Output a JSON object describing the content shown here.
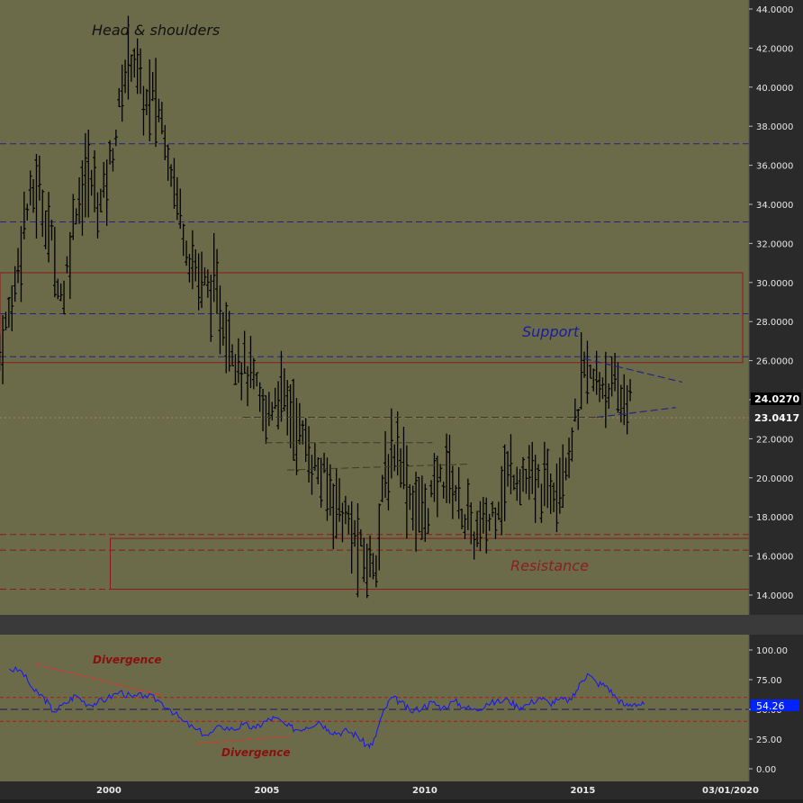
{
  "colors": {
    "panel_bg": "#6c6b49",
    "axis_bg": "#2a2a2a",
    "axis_text": "#e8e8e8",
    "bars": "#000000",
    "support_line": "#23238a",
    "zone_border": "#8c1a1a",
    "annotation_black": "#111111",
    "annotation_blue": "#1c1c9c",
    "annotation_red": "#8a2020",
    "rsi_line": "#1a1aee",
    "price_badge_bg": "#000000",
    "rsi_badge_bg": "#0022ff"
  },
  "annotations": {
    "head_shoulders": "Head & shoulders",
    "support": "Support",
    "resistance": "Resistance",
    "divergence_top": "Divergence",
    "divergence_bottom": "Divergence"
  },
  "price_axis": {
    "ticks": [
      "44.0000",
      "42.0000",
      "40.0000",
      "38.0000",
      "36.0000",
      "34.0000",
      "32.0000",
      "30.0000",
      "28.0000",
      "26.0000",
      "24.0000",
      "22.0000",
      "20.0000",
      "18.0000",
      "16.0000",
      "14.0000"
    ],
    "current_price": "24.0270",
    "reference_price": "23.0417"
  },
  "rsi_axis": {
    "ticks": [
      "100.00",
      "75.00",
      "50.00",
      "25.00",
      "0.00"
    ],
    "current_value": "54.26"
  },
  "time_axis": {
    "labels": [
      "2000",
      "2005",
      "2010",
      "2015",
      "03/01/2020"
    ]
  },
  "chart_data": [
    {
      "type": "bar",
      "title": "",
      "ylim": [
        13,
        44.3
      ],
      "x_range": [
        1996.6,
        2019.9
      ],
      "horizontal_levels": [
        37.1,
        33.1,
        28.4,
        26.2
      ],
      "support_zone": {
        "x": [
          1996.6,
          2020.0
        ],
        "y": [
          25.9,
          30.5
        ]
      },
      "resistance_zone": {
        "x": [
          2000.1,
          2020.0
        ],
        "y": [
          14.3,
          16.9
        ]
      },
      "resistance_dashed_levels": [
        17.1,
        16.3,
        14.3
      ],
      "triangle": {
        "upper": [
          [
            2015.1,
            26.1
          ],
          [
            2018.2,
            24.9
          ]
        ],
        "lower": [
          [
            2015.5,
            23.1
          ],
          [
            2018.0,
            23.6
          ]
        ]
      },
      "neckline_segments": [
        [
          [
            2004.3,
            23.1
          ],
          [
            2015.7,
            23.1
          ]
        ],
        [
          [
            2005.0,
            21.8
          ],
          [
            2010.3,
            21.8
          ]
        ],
        [
          [
            2005.7,
            20.4
          ],
          [
            2011.4,
            20.7
          ]
        ]
      ],
      "series": [
        {
          "x": [
            1996.6,
            1997.0,
            1997.4,
            1997.8,
            1998.2,
            1998.6,
            1999.0,
            1999.4,
            1999.8,
            2000.2,
            2000.6,
            2000.8,
            2001.2,
            2001.5,
            2001.8,
            2002.2,
            2002.6,
            2003.0,
            2003.4,
            2003.8,
            2004.2,
            2004.6,
            2005.0,
            2005.4,
            2005.8,
            2006.2,
            2006.6,
            2007.0,
            2007.4,
            2007.8,
            2008.2,
            2008.5,
            2008.8,
            2009.2,
            2009.6,
            2010.0,
            2010.4,
            2010.8,
            2011.2,
            2011.6,
            2012.0,
            2012.4,
            2012.8,
            2013.2,
            2013.6,
            2014.0,
            2014.4,
            2014.8,
            2015.1,
            2015.4,
            2015.8,
            2016.2,
            2016.6
          ],
          "values": [
            26.5,
            29.0,
            33.5,
            35.0,
            32.5,
            29.0,
            34.0,
            35.5,
            34.0,
            37.0,
            41.0,
            42.0,
            39.0,
            39.5,
            38.0,
            34.5,
            31.5,
            30.0,
            29.5,
            27.5,
            26.0,
            25.0,
            23.0,
            24.5,
            23.5,
            22.0,
            20.5,
            19.5,
            18.5,
            17.0,
            15.5,
            16.0,
            20.0,
            22.0,
            19.0,
            18.0,
            19.5,
            20.5,
            18.5,
            17.0,
            17.5,
            19.0,
            20.5,
            20.0,
            19.5,
            19.5,
            20.5,
            22.5,
            25.5,
            24.8,
            25.0,
            24.0,
            24.03
          ]
        }
      ]
    },
    {
      "type": "line",
      "title": "",
      "ylim": [
        0,
        100
      ],
      "upper_band": 60,
      "mid_line": 50,
      "lower_band": 40,
      "series": [
        {
          "x": [
            1996.9,
            1997.3,
            1997.7,
            1998.0,
            1998.3,
            1998.7,
            1999.0,
            1999.4,
            1999.7,
            2000.0,
            2000.4,
            2000.8,
            2001.2,
            2001.6,
            2002.0,
            2002.4,
            2002.8,
            2003.2,
            2003.6,
            2004.0,
            2004.3,
            2004.7,
            2005.0,
            2005.3,
            2005.7,
            2006.0,
            2006.3,
            2006.7,
            2007.0,
            2007.3,
            2007.6,
            2007.9,
            2008.2,
            2008.4,
            2008.7,
            2009.0,
            2009.3,
            2009.6,
            2010.0,
            2010.3,
            2010.6,
            2011.0,
            2011.3,
            2011.7,
            2012.0,
            2012.3,
            2012.7,
            2013.0,
            2013.3,
            2013.7,
            2014.0,
            2014.3,
            2014.7,
            2015.0,
            2015.2,
            2015.5,
            2015.8,
            2016.1,
            2016.4,
            2016.7,
            2017.0
          ],
          "values": [
            84,
            82,
            65,
            60,
            48,
            55,
            62,
            54,
            56,
            59,
            65,
            60,
            62,
            58,
            50,
            40,
            33,
            28,
            36,
            33,
            37,
            34,
            40,
            43,
            36,
            33,
            35,
            40,
            33,
            30,
            32,
            28,
            20,
            20,
            45,
            60,
            56,
            48,
            52,
            56,
            51,
            57,
            52,
            49,
            55,
            56,
            58,
            52,
            54,
            60,
            55,
            58,
            58,
            73,
            80,
            72,
            70,
            60,
            53,
            55,
            54
          ]
        }
      ]
    }
  ]
}
